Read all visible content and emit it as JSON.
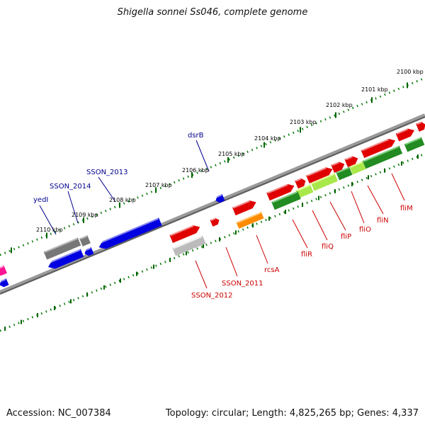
{
  "title": "Shigella sonnei Ss046, complete genome",
  "footer": {
    "accession": "Accession: NC_007384",
    "stats": "Topology: circular; Length: 4,825,265 bp; Genes: 4,337"
  },
  "colors": {
    "forward_cds": "#e00000",
    "reverse_cds": "#0000e0",
    "flagellar_operon": "#228b22",
    "flagellar_light": "#a8e84a",
    "regulator": "#ff8c00",
    "pseudo_gray": "#777777",
    "pink": "#ff1493",
    "label_red": "#cc0000",
    "label_blue": "#00008b",
    "ruler_green": "#006400",
    "backbone": "#808080"
  },
  "ruler_ticks": [
    {
      "label": "2100 kbp"
    },
    {
      "label": "2101 kbp"
    },
    {
      "label": "2102 kbp"
    },
    {
      "label": "2103 kbp"
    },
    {
      "label": "2104 kbp"
    },
    {
      "label": "2105 kbp"
    },
    {
      "label": "2106 kbp"
    },
    {
      "label": "2107 kbp"
    },
    {
      "label": "2108 kbp"
    },
    {
      "label": "2109 kbp"
    },
    {
      "label": "2110 kbp"
    }
  ],
  "gene_labels": [
    {
      "text": "dsrB",
      "strand": "reverse"
    },
    {
      "text": "SSON_2013",
      "strand": "reverse"
    },
    {
      "text": "SSON_2014",
      "strand": "reverse"
    },
    {
      "text": "yedI",
      "strand": "reverse"
    },
    {
      "text": "fliM",
      "strand": "forward"
    },
    {
      "text": "fliN",
      "strand": "forward"
    },
    {
      "text": "fliO",
      "strand": "forward"
    },
    {
      "text": "fliP",
      "strand": "forward"
    },
    {
      "text": "fliQ",
      "strand": "forward"
    },
    {
      "text": "fliR",
      "strand": "forward"
    },
    {
      "text": "rcsA",
      "strand": "forward"
    },
    {
      "text": "SSON_2011",
      "strand": "forward"
    },
    {
      "text": "SSON_2012",
      "strand": "forward"
    }
  ]
}
